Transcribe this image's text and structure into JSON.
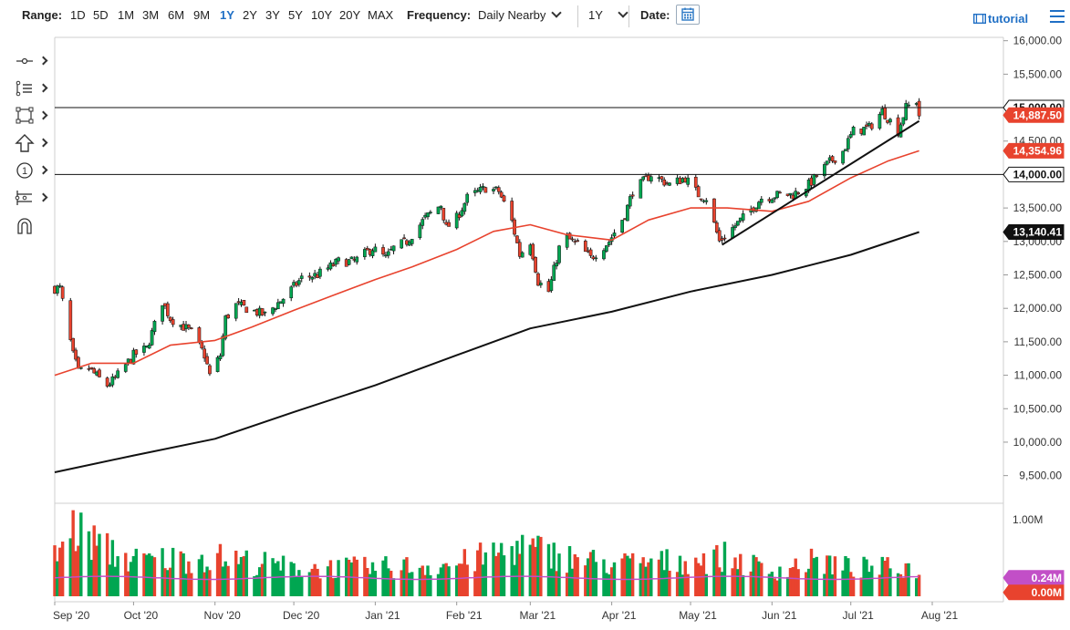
{
  "toolbar": {
    "range_label": "Range:",
    "ranges": [
      "1D",
      "5D",
      "1M",
      "3M",
      "6M",
      "9M",
      "1Y",
      "2Y",
      "3Y",
      "5Y",
      "10Y",
      "20Y",
      "MAX"
    ],
    "active_range": "1Y",
    "frequency_label": "Frequency:",
    "frequency_value": "Daily Nearby",
    "period_value": "1Y",
    "date_label": "Date:",
    "tutorial_label": "tutorial",
    "accent_color": "#1f6fc5"
  },
  "sidebar": {
    "tools": [
      "crosshair-icon",
      "trend-lines-icon",
      "rectangle-shape-icon",
      "arrow-up-icon",
      "counter-one-icon",
      "measure-tool-icon",
      "magnet-icon"
    ]
  },
  "chart_data": [
    {
      "type": "candlestick",
      "ylim": [
        9100,
        16050
      ],
      "y_ticks": [
        "9,500.00",
        "10,000.00",
        "10,500.00",
        "11,000.00",
        "11,500.00",
        "12,000.00",
        "12,500.00",
        "13,000.00",
        "13,500.00",
        "14,000.00",
        "14,500.00",
        "15,000.00",
        "15,500.00",
        "16,000.00"
      ],
      "x_ticks": [
        "Sep '20",
        "Oct '20",
        "Nov '20",
        "Dec '20",
        "Jan '21",
        "Feb '21",
        "Mar '21",
        "Apr '21",
        "May '21",
        "Jun '21",
        "Jul '21",
        "Aug '21"
      ],
      "up_color": "#00a651",
      "down_color": "#e8432e",
      "anchor_closes": [
        [
          "2020-09-03",
          12300
        ],
        [
          "2020-09-08",
          11300
        ],
        [
          "2020-09-10",
          11050
        ],
        [
          "2020-09-14",
          11100
        ],
        [
          "2020-09-18",
          10950
        ],
        [
          "2020-09-21",
          10850
        ],
        [
          "2020-09-24",
          10950
        ],
        [
          "2020-10-01",
          11300
        ],
        [
          "2020-10-06",
          11400
        ],
        [
          "2020-10-12",
          12100
        ],
        [
          "2020-10-15",
          11850
        ],
        [
          "2020-10-19",
          11750
        ],
        [
          "2020-10-23",
          11650
        ],
        [
          "2020-10-28",
          11300
        ],
        [
          "2020-10-30",
          11000
        ],
        [
          "2020-11-03",
          11300
        ],
        [
          "2020-11-05",
          11850
        ],
        [
          "2020-11-09",
          12050
        ],
        [
          "2020-11-13",
          12000
        ],
        [
          "2020-11-20",
          11900
        ],
        [
          "2020-11-27",
          12150
        ],
        [
          "2020-12-04",
          12450
        ],
        [
          "2020-12-10",
          12500
        ],
        [
          "2020-12-18",
          12700
        ],
        [
          "2020-12-24",
          12700
        ],
        [
          "2020-12-31",
          12900
        ],
        [
          "2021-01-05",
          12750
        ],
        [
          "2021-01-08",
          12900
        ],
        [
          "2021-01-13",
          13000
        ],
        [
          "2021-01-20",
          13350
        ],
        [
          "2021-01-26",
          13550
        ],
        [
          "2021-01-28",
          13200
        ],
        [
          "2021-02-01",
          13350
        ],
        [
          "2021-02-05",
          13650
        ],
        [
          "2021-02-12",
          13800
        ],
        [
          "2021-02-17",
          13750
        ],
        [
          "2021-02-22",
          13300
        ],
        [
          "2021-02-25",
          12800
        ],
        [
          "2021-03-01",
          13000
        ],
        [
          "2021-03-04",
          12400
        ],
        [
          "2021-03-08",
          12250
        ],
        [
          "2021-03-12",
          12900
        ],
        [
          "2021-03-15",
          13050
        ],
        [
          "2021-03-19",
          12950
        ],
        [
          "2021-03-24",
          12750
        ],
        [
          "2021-03-31",
          13000
        ],
        [
          "2021-04-06",
          13400
        ],
        [
          "2021-04-09",
          13750
        ],
        [
          "2021-04-16",
          14000
        ],
        [
          "2021-04-23",
          13850
        ],
        [
          "2021-04-29",
          13950
        ],
        [
          "2021-05-04",
          13700
        ],
        [
          "2021-05-07",
          13650
        ],
        [
          "2021-05-12",
          13000
        ],
        [
          "2021-05-17",
          13200
        ],
        [
          "2021-05-21",
          13350
        ],
        [
          "2021-05-28",
          13650
        ],
        [
          "2021-06-04",
          13700
        ],
        [
          "2021-06-09",
          13700
        ],
        [
          "2021-06-15",
          13850
        ],
        [
          "2021-06-22",
          14150
        ],
        [
          "2021-06-28",
          14350
        ],
        [
          "2021-07-02",
          14650
        ],
        [
          "2021-07-08",
          14700
        ],
        [
          "2021-07-13",
          14950
        ],
        [
          "2021-07-19",
          14650
        ],
        [
          "2021-07-22",
          15000
        ],
        [
          "2021-07-26",
          15100
        ],
        [
          "2021-07-27",
          14887.5
        ]
      ],
      "ma50_points": [
        [
          "2020-09-01",
          11000
        ],
        [
          "2020-09-15",
          11180
        ],
        [
          "2020-10-01",
          11180
        ],
        [
          "2020-10-15",
          11450
        ],
        [
          "2020-11-01",
          11520
        ],
        [
          "2020-11-15",
          11720
        ],
        [
          "2020-12-01",
          11970
        ],
        [
          "2020-12-15",
          12180
        ],
        [
          "2021-01-01",
          12430
        ],
        [
          "2021-01-15",
          12620
        ],
        [
          "2021-02-01",
          12880
        ],
        [
          "2021-02-15",
          13150
        ],
        [
          "2021-03-01",
          13250
        ],
        [
          "2021-03-15",
          13100
        ],
        [
          "2021-04-01",
          13020
        ],
        [
          "2021-04-15",
          13320
        ],
        [
          "2021-05-01",
          13500
        ],
        [
          "2021-05-15",
          13500
        ],
        [
          "2021-06-01",
          13450
        ],
        [
          "2021-06-15",
          13600
        ],
        [
          "2021-07-01",
          13950
        ],
        [
          "2021-07-15",
          14200
        ],
        [
          "2021-07-27",
          14354.96
        ]
      ],
      "ma200_points": [
        [
          "2020-09-01",
          9550
        ],
        [
          "2020-10-01",
          9800
        ],
        [
          "2020-11-01",
          10050
        ],
        [
          "2020-12-01",
          10450
        ],
        [
          "2021-01-01",
          10850
        ],
        [
          "2021-02-01",
          11300
        ],
        [
          "2021-03-01",
          11700
        ],
        [
          "2021-04-01",
          11950
        ],
        [
          "2021-05-01",
          12250
        ],
        [
          "2021-06-01",
          12500
        ],
        [
          "2021-07-01",
          12800
        ],
        [
          "2021-07-27",
          13140.41
        ]
      ],
      "horizontal_lines": [
        15000,
        14000
      ],
      "trendline": [
        [
          "2021-05-13",
          12950
        ],
        [
          "2021-07-27",
          14800
        ]
      ],
      "price_labels": [
        {
          "text": "15,000.00",
          "value": 15000,
          "bg": "#ffffff",
          "fg": "#111111"
        },
        {
          "text": "14,887.50",
          "value": 14887.5,
          "bg": "#e8432e",
          "fg": "#ffffff"
        },
        {
          "text": "14,354.96",
          "value": 14354.96,
          "bg": "#e8432e",
          "fg": "#ffffff"
        },
        {
          "text": "14,000.00",
          "value": 14000,
          "bg": "#ffffff",
          "fg": "#111111"
        },
        {
          "text": "13,140.41",
          "value": 13140.41,
          "bg": "#111111",
          "fg": "#ffffff"
        }
      ]
    },
    {
      "type": "bar",
      "name": "volume",
      "ylim": [
        0,
        1.2
      ],
      "y_ticks": [
        "1.00M"
      ],
      "avg_label": "0.24M",
      "avg_value": 0.24,
      "avg_color": "#c24fc7",
      "zero_label": "0.00M",
      "zero_color": "#e8432e",
      "approx_levels": [
        [
          "2020-09-01",
          0.55
        ],
        [
          "2020-09-08",
          0.95
        ],
        [
          "2020-09-21",
          0.65
        ],
        [
          "2020-10-01",
          0.5
        ],
        [
          "2020-11-01",
          0.55
        ],
        [
          "2020-12-01",
          0.4
        ],
        [
          "2021-01-01",
          0.4
        ],
        [
          "2021-02-01",
          0.45
        ],
        [
          "2021-02-25",
          0.7
        ],
        [
          "2021-03-15",
          0.55
        ],
        [
          "2021-04-01",
          0.45
        ],
        [
          "2021-05-01",
          0.5
        ],
        [
          "2021-05-15",
          0.55
        ],
        [
          "2021-06-01",
          0.35
        ],
        [
          "2021-06-18",
          0.5
        ],
        [
          "2021-07-01",
          0.4
        ],
        [
          "2021-07-27",
          0.4
        ]
      ]
    }
  ]
}
